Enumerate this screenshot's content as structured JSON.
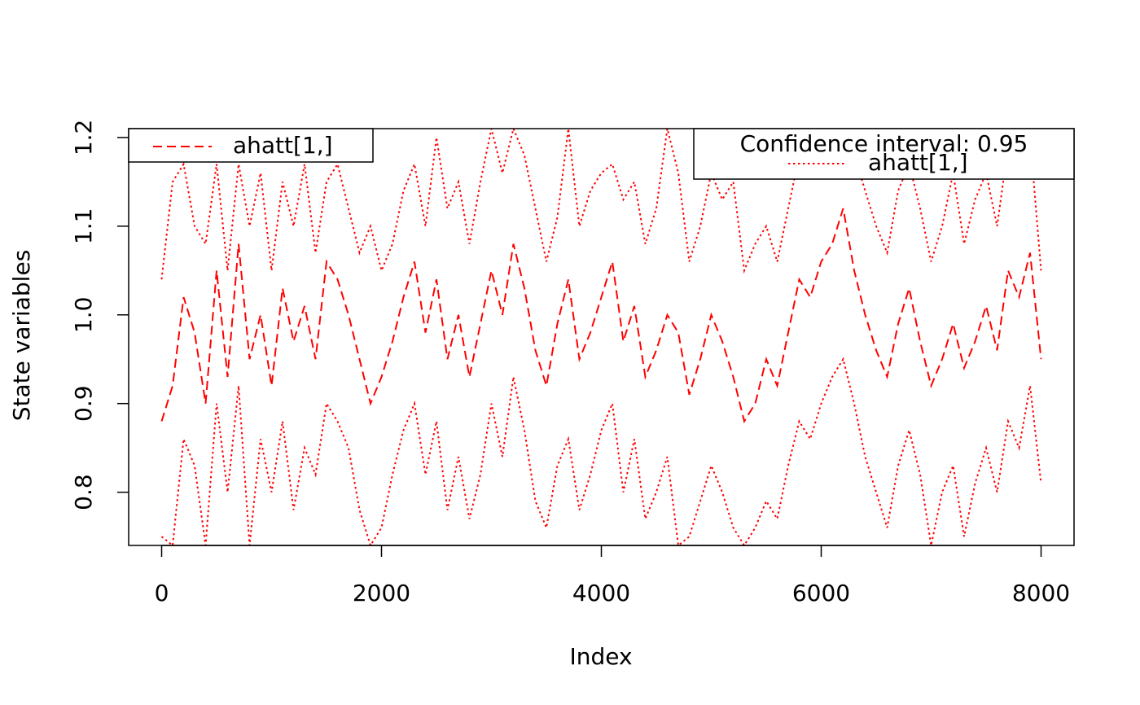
{
  "chart_data": {
    "type": "line",
    "title": "",
    "xlabel": "Index",
    "ylabel": "State variables",
    "xlim": [
      -300,
      8300
    ],
    "ylim": [
      0.74,
      1.21
    ],
    "x_ticks": [
      0,
      2000,
      4000,
      6000,
      8000
    ],
    "x_tick_labels": [
      "0",
      "2000",
      "4000",
      "6000",
      "8000"
    ],
    "y_ticks": [
      0.8,
      0.9,
      1.0,
      1.1,
      1.2
    ],
    "y_tick_labels": [
      "0.8",
      "0.9",
      "1.0",
      "1.1",
      "1.2"
    ],
    "grid": false,
    "color": "#ff0000",
    "series": [
      {
        "name": "ahatt[1,]",
        "role": "estimate",
        "dash": "dashed",
        "x": [
          0,
          100,
          200,
          300,
          400,
          500,
          600,
          700,
          800,
          900,
          1000,
          1100,
          1200,
          1300,
          1400,
          1500,
          1600,
          1700,
          1800,
          1900,
          2000,
          2100,
          2200,
          2300,
          2400,
          2500,
          2600,
          2700,
          2800,
          2900,
          3000,
          3100,
          3200,
          3300,
          3400,
          3500,
          3600,
          3700,
          3800,
          3900,
          4000,
          4100,
          4200,
          4300,
          4400,
          4500,
          4600,
          4700,
          4800,
          4900,
          5000,
          5100,
          5200,
          5300,
          5400,
          5500,
          5600,
          5700,
          5800,
          5900,
          6000,
          6100,
          6200,
          6300,
          6400,
          6500,
          6600,
          6700,
          6800,
          6900,
          7000,
          7100,
          7200,
          7300,
          7400,
          7500,
          7600,
          7700,
          7800,
          7900,
          8000
        ],
        "values": [
          0.88,
          0.92,
          1.02,
          0.98,
          0.9,
          1.05,
          0.93,
          1.08,
          0.95,
          1.0,
          0.92,
          1.03,
          0.97,
          1.01,
          0.95,
          1.06,
          1.04,
          1.0,
          0.95,
          0.9,
          0.93,
          0.97,
          1.02,
          1.06,
          0.98,
          1.04,
          0.95,
          1.0,
          0.93,
          0.99,
          1.05,
          1.0,
          1.08,
          1.03,
          0.96,
          0.92,
          0.99,
          1.04,
          0.95,
          0.98,
          1.02,
          1.06,
          0.97,
          1.01,
          0.93,
          0.96,
          1.0,
          0.98,
          0.91,
          0.95,
          1.0,
          0.97,
          0.93,
          0.88,
          0.9,
          0.95,
          0.92,
          0.98,
          1.04,
          1.02,
          1.06,
          1.08,
          1.12,
          1.05,
          1.0,
          0.96,
          0.93,
          0.99,
          1.03,
          0.97,
          0.92,
          0.95,
          0.99,
          0.94,
          0.97,
          1.01,
          0.96,
          1.05,
          1.02,
          1.07,
          0.95
        ]
      },
      {
        "name": "ahatt[1,]",
        "role": "upper confidence bound",
        "dash": "dotted",
        "x": [
          0,
          100,
          200,
          300,
          400,
          500,
          600,
          700,
          800,
          900,
          1000,
          1100,
          1200,
          1300,
          1400,
          1500,
          1600,
          1700,
          1800,
          1900,
          2000,
          2100,
          2200,
          2300,
          2400,
          2500,
          2600,
          2700,
          2800,
          2900,
          3000,
          3100,
          3200,
          3300,
          3400,
          3500,
          3600,
          3700,
          3800,
          3900,
          4000,
          4100,
          4200,
          4300,
          4400,
          4500,
          4600,
          4700,
          4800,
          4900,
          5000,
          5100,
          5200,
          5300,
          5400,
          5500,
          5600,
          5700,
          5800,
          5900,
          6000,
          6100,
          6200,
          6300,
          6400,
          6500,
          6600,
          6700,
          6800,
          6900,
          7000,
          7100,
          7200,
          7300,
          7400,
          7500,
          7600,
          7700,
          7800,
          7900,
          8000
        ],
        "values": [
          1.04,
          1.15,
          1.17,
          1.1,
          1.08,
          1.17,
          1.05,
          1.17,
          1.1,
          1.16,
          1.05,
          1.15,
          1.1,
          1.17,
          1.07,
          1.15,
          1.17,
          1.12,
          1.07,
          1.1,
          1.05,
          1.08,
          1.14,
          1.17,
          1.1,
          1.2,
          1.12,
          1.15,
          1.08,
          1.15,
          1.21,
          1.16,
          1.21,
          1.18,
          1.12,
          1.06,
          1.11,
          1.21,
          1.1,
          1.14,
          1.16,
          1.17,
          1.13,
          1.15,
          1.08,
          1.12,
          1.21,
          1.16,
          1.06,
          1.1,
          1.16,
          1.13,
          1.15,
          1.05,
          1.08,
          1.1,
          1.06,
          1.12,
          1.18,
          1.16,
          1.2,
          1.2,
          1.2,
          1.18,
          1.14,
          1.1,
          1.07,
          1.14,
          1.17,
          1.12,
          1.06,
          1.1,
          1.16,
          1.08,
          1.13,
          1.16,
          1.1,
          1.19,
          1.16,
          1.2,
          1.05
        ]
      },
      {
        "name": "ahatt[1,]",
        "role": "lower confidence bound",
        "dash": "dotted",
        "x": [
          0,
          100,
          200,
          300,
          400,
          500,
          600,
          700,
          800,
          900,
          1000,
          1100,
          1200,
          1300,
          1400,
          1500,
          1600,
          1700,
          1800,
          1900,
          2000,
          2100,
          2200,
          2300,
          2400,
          2500,
          2600,
          2700,
          2800,
          2900,
          3000,
          3100,
          3200,
          3300,
          3400,
          3500,
          3600,
          3700,
          3800,
          3900,
          4000,
          4100,
          4200,
          4300,
          4400,
          4500,
          4600,
          4700,
          4800,
          4900,
          5000,
          5100,
          5200,
          5300,
          5400,
          5500,
          5600,
          5700,
          5800,
          5900,
          6000,
          6100,
          6200,
          6300,
          6400,
          6500,
          6600,
          6700,
          6800,
          6900,
          7000,
          7100,
          7200,
          7300,
          7400,
          7500,
          7600,
          7700,
          7800,
          7900,
          8000
        ],
        "values": [
          0.75,
          0.74,
          0.86,
          0.83,
          0.74,
          0.9,
          0.8,
          0.92,
          0.74,
          0.86,
          0.8,
          0.88,
          0.78,
          0.85,
          0.82,
          0.9,
          0.88,
          0.85,
          0.78,
          0.74,
          0.76,
          0.82,
          0.87,
          0.9,
          0.82,
          0.88,
          0.78,
          0.84,
          0.77,
          0.82,
          0.9,
          0.84,
          0.93,
          0.87,
          0.79,
          0.76,
          0.83,
          0.86,
          0.78,
          0.82,
          0.87,
          0.9,
          0.8,
          0.86,
          0.77,
          0.8,
          0.84,
          0.74,
          0.75,
          0.79,
          0.83,
          0.8,
          0.76,
          0.74,
          0.76,
          0.79,
          0.77,
          0.83,
          0.88,
          0.86,
          0.9,
          0.93,
          0.95,
          0.9,
          0.84,
          0.8,
          0.76,
          0.83,
          0.87,
          0.82,
          0.74,
          0.8,
          0.83,
          0.75,
          0.81,
          0.85,
          0.8,
          0.88,
          0.85,
          0.92,
          0.81
        ]
      }
    ],
    "legends": [
      {
        "position": "top-left",
        "title": "",
        "entries": [
          {
            "label": "ahatt[1,]",
            "dash": "dashed"
          }
        ]
      },
      {
        "position": "top-right",
        "title": "Confidence interval: 0.95",
        "entries": [
          {
            "label": "ahatt[1,]",
            "dash": "dotted"
          }
        ]
      }
    ]
  }
}
